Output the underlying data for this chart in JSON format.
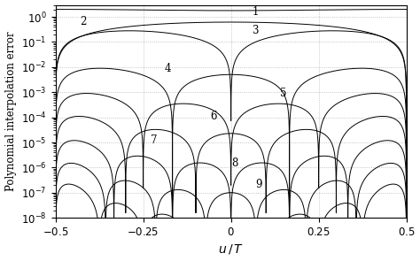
{
  "title": "",
  "xlabel": "$u\\,/\\,T$",
  "ylabel": "Polynomial interpolation error",
  "xlim": [
    -0.5,
    0.5
  ],
  "ylim_log": [
    -8,
    0
  ],
  "background_color": "#ffffff",
  "grid_color": "#aaaaaa",
  "curve_color": "#000000",
  "num_curves": 9,
  "curve_labels": [
    "1",
    "2",
    "3",
    "4",
    "5",
    "6",
    "7",
    "8",
    "9"
  ],
  "label_positions_x": [
    0.07,
    -0.42,
    0.07,
    -0.18,
    0.15,
    -0.05,
    -0.22,
    0.01,
    0.08
  ],
  "label_positions_y": [
    1.6,
    0.62,
    0.28,
    0.009,
    0.0009,
    0.00011,
    1.2e-05,
    1.5e-06,
    2.2e-07
  ],
  "peak_vals": [
    2.0,
    0.62,
    0.28,
    0.009,
    0.0009,
    0.00011,
    1.2e-05,
    1.5e-06,
    2.2e-07
  ]
}
